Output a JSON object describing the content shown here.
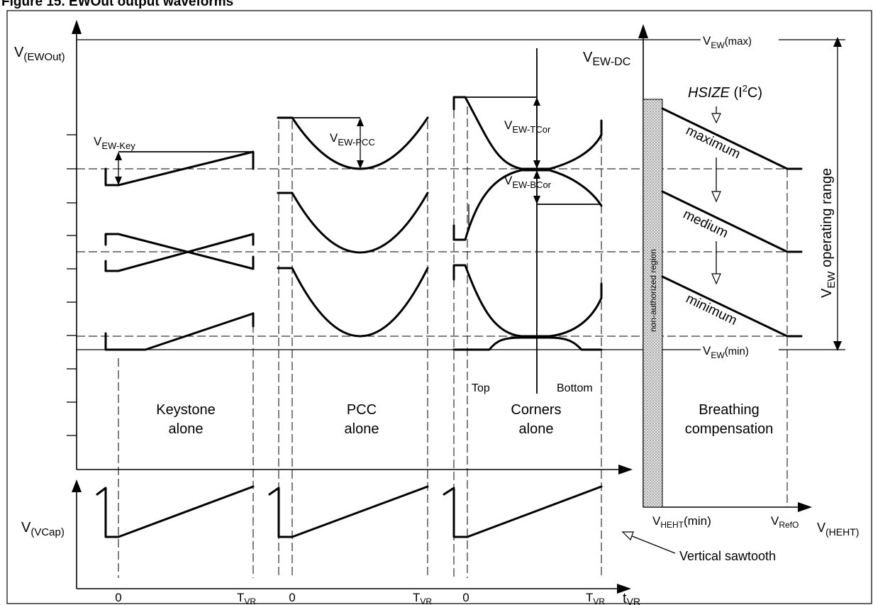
{
  "title": "Figure 15. EWOut output waveforms",
  "labels": {
    "v_ewout": "(EWOut)",
    "v_ewdc": "EW-DC",
    "v_ew_max_sub": "EW",
    "v_ew_max_suffix": "(max)",
    "v_ew_min_sub": "EW",
    "v_ew_min_suffix": "(min)",
    "v_ew_key": "EW-Key",
    "v_ew_pcc": "EW-PCC",
    "v_ew_tcor": "EW-TCor",
    "v_ew_bcor": "EW-BCor",
    "hsize": "HSIZE",
    "hsize_bus_a": "(I",
    "hsize_bus_b": "2",
    "hsize_bus_c": "C)",
    "maximum": "maximum",
    "medium": "medium",
    "minimum": "minimum",
    "non_authorized": "non-authorized region",
    "operating_range_sub": "EW",
    "operating_range_text": "operating range",
    "top": "Top",
    "bottom": "Bottom",
    "keystone_1": "Keystone",
    "keystone_2": "alone",
    "pcc_1": "PCC",
    "pcc_2": "alone",
    "corners_1": "Corners",
    "corners_2": "alone",
    "breathing_1": "Breathing",
    "breathing_2": "compensation",
    "v_vcap": "(VCap)",
    "vertical_sawtooth": "Vertical sawtooth",
    "zero": "0",
    "t_vr_sub": "VR",
    "v_heht_min_sub": "HEHT",
    "v_heht_min_suffix": "(min)",
    "v_refo_sub": "RefO",
    "v_heht_sub": "(HEHT)",
    "t_vr_axis_sub": "VR",
    "v_letter": "V",
    "t_letter": "T",
    "t_lower": "t"
  }
}
